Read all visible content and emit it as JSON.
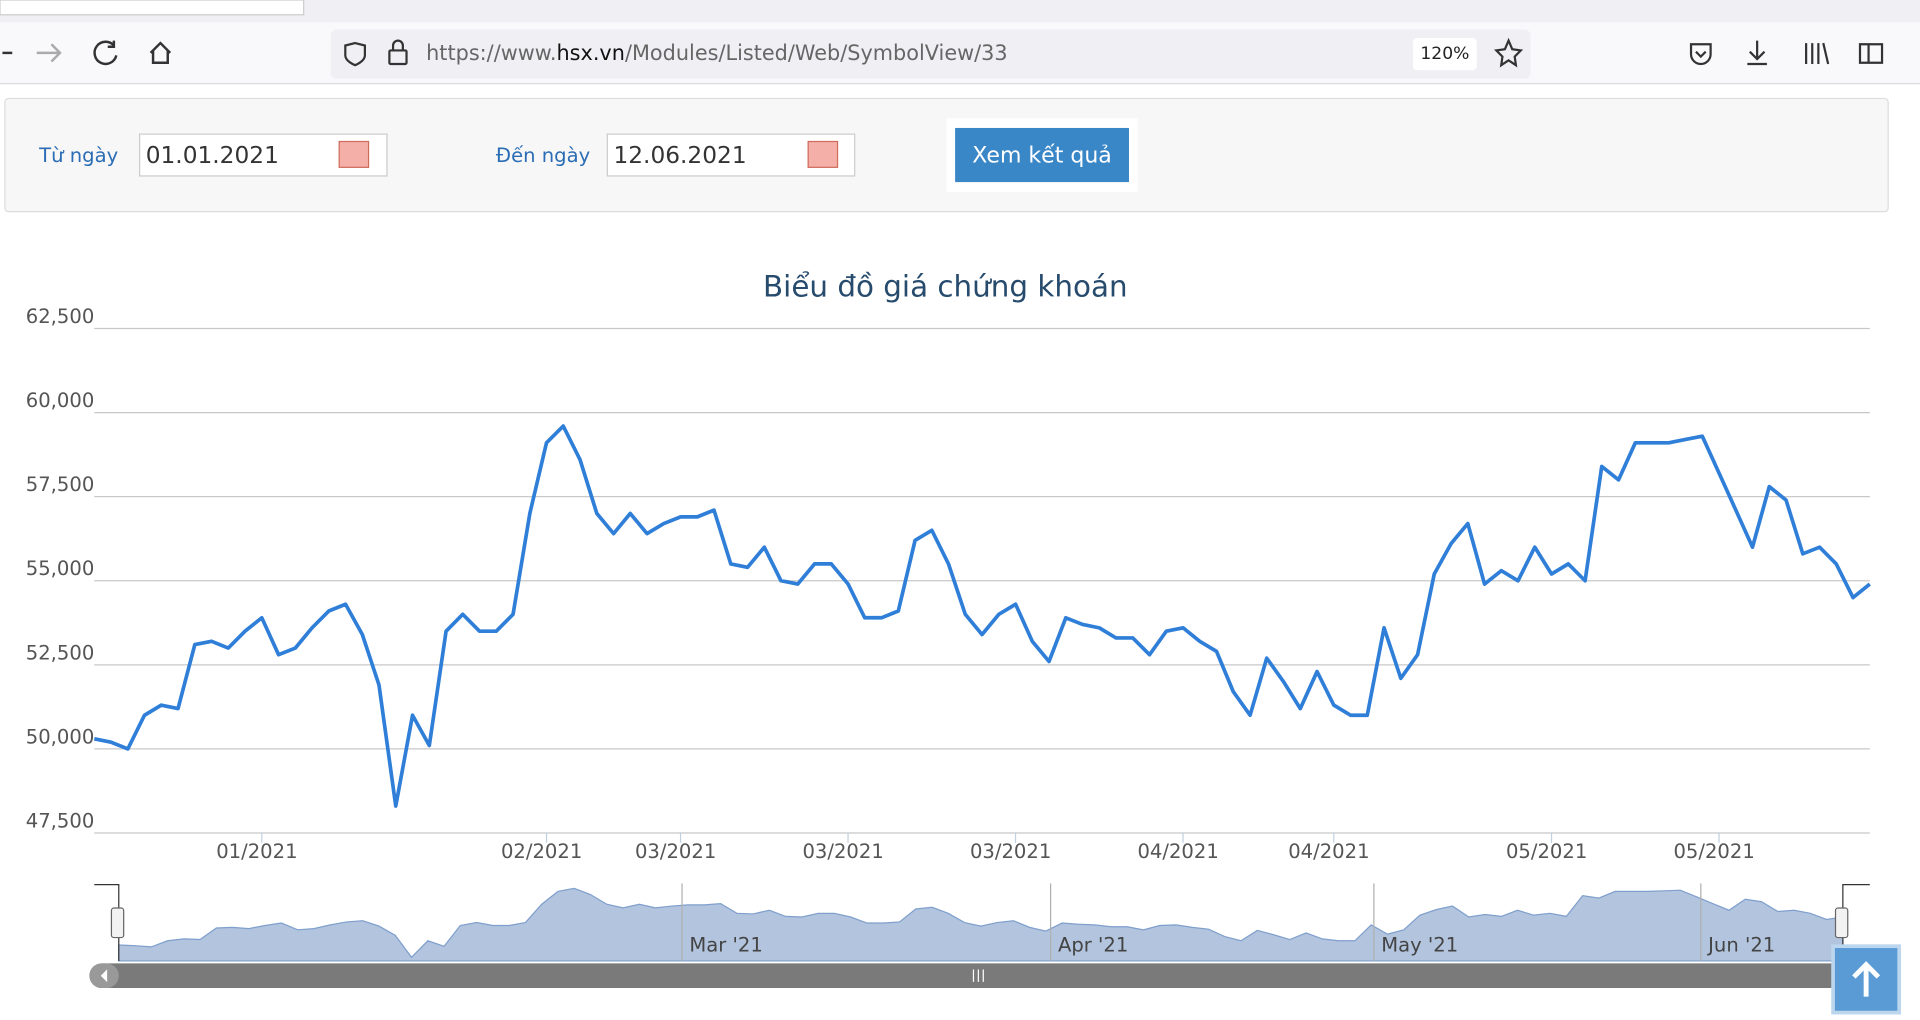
{
  "browser": {
    "url_prefix": "https://www.",
    "url_domain": "hsx.vn",
    "url_path": "/Modules/Listed/Web/SymbolView/33",
    "zoom": "120%"
  },
  "filter": {
    "from_label": "Từ ngày",
    "from_value": "01.01.2021",
    "to_label": "Đến ngày",
    "to_value": "12.06.2021",
    "button": "Xem kết quả"
  },
  "chart_data": {
    "type": "line",
    "title": "Biểu đồ giá chứng khoán",
    "categories": [
      null,
      null,
      null,
      null,
      null,
      null,
      null,
      null,
      null,
      null,
      "01/2021",
      null,
      null,
      null,
      null,
      null,
      null,
      null,
      null,
      null,
      null,
      null,
      null,
      null,
      null,
      null,
      null,
      "02/2021",
      null,
      null,
      null,
      null,
      null,
      null,
      null,
      "03/2021",
      null,
      null,
      null,
      null,
      null,
      null,
      null,
      null,
      null,
      "03/2021",
      null,
      null,
      null,
      null,
      null,
      null,
      null,
      null,
      null,
      "03/2021",
      null,
      null,
      null,
      null,
      null,
      null,
      null,
      null,
      null,
      "04/2021",
      null,
      null,
      null,
      null,
      null,
      null,
      null,
      null,
      "04/2021",
      null,
      null,
      null,
      null,
      null,
      null,
      null,
      null,
      null,
      null,
      null,
      null,
      "05/2021",
      null,
      null,
      null,
      null,
      null,
      null,
      null,
      null,
      null,
      "05/2021",
      null,
      null,
      null,
      null,
      null,
      null,
      null,
      null,
      null
    ],
    "series": [
      {
        "color": "#2f7ed8",
        "values": [
          50300,
          50200,
          50000,
          51000,
          51300,
          51200,
          53100,
          53200,
          53000,
          53500,
          53900,
          52800,
          53000,
          53600,
          54100,
          54300,
          53400,
          51900,
          48300,
          51000,
          50100,
          53500,
          54000,
          53500,
          53500,
          54000,
          57000,
          59100,
          59600,
          58600,
          57000,
          56400,
          57000,
          56400,
          56700,
          56900,
          56900,
          57100,
          55500,
          55400,
          56000,
          55000,
          54900,
          55500,
          55500,
          54900,
          53900,
          53900,
          54100,
          56200,
          56500,
          55500,
          54000,
          53400,
          54000,
          54300,
          53200,
          52600,
          53900,
          53700,
          53600,
          53300,
          53300,
          52800,
          53500,
          53600,
          53200,
          52900,
          51700,
          51000,
          52700,
          52000,
          51200,
          52300,
          51300,
          51000,
          51000,
          53600,
          52100,
          52800,
          55200,
          56100,
          56700,
          54900,
          55300,
          55000,
          56000,
          55200,
          55500,
          55000,
          58400,
          58000,
          59100,
          59100,
          59100,
          59200,
          59300,
          58200,
          57100,
          56000,
          57800,
          57400,
          55800,
          56000,
          55500,
          54500,
          54900
        ]
      }
    ],
    "ylim": [
      47500,
      62500
    ],
    "yticks": [
      {
        "value": 47500,
        "label": "47,500"
      },
      {
        "value": 50000,
        "label": "50,000"
      },
      {
        "value": 52500,
        "label": "52,500"
      },
      {
        "value": 55000,
        "label": "55,000"
      },
      {
        "value": 57500,
        "label": "57,500"
      },
      {
        "value": 60000,
        "label": "60,000"
      },
      {
        "value": 62500,
        "label": "62,500"
      }
    ],
    "grid": true,
    "navigator_labels": [
      "Mar '21",
      "Apr '21",
      "May '21",
      "Jun '21"
    ]
  }
}
